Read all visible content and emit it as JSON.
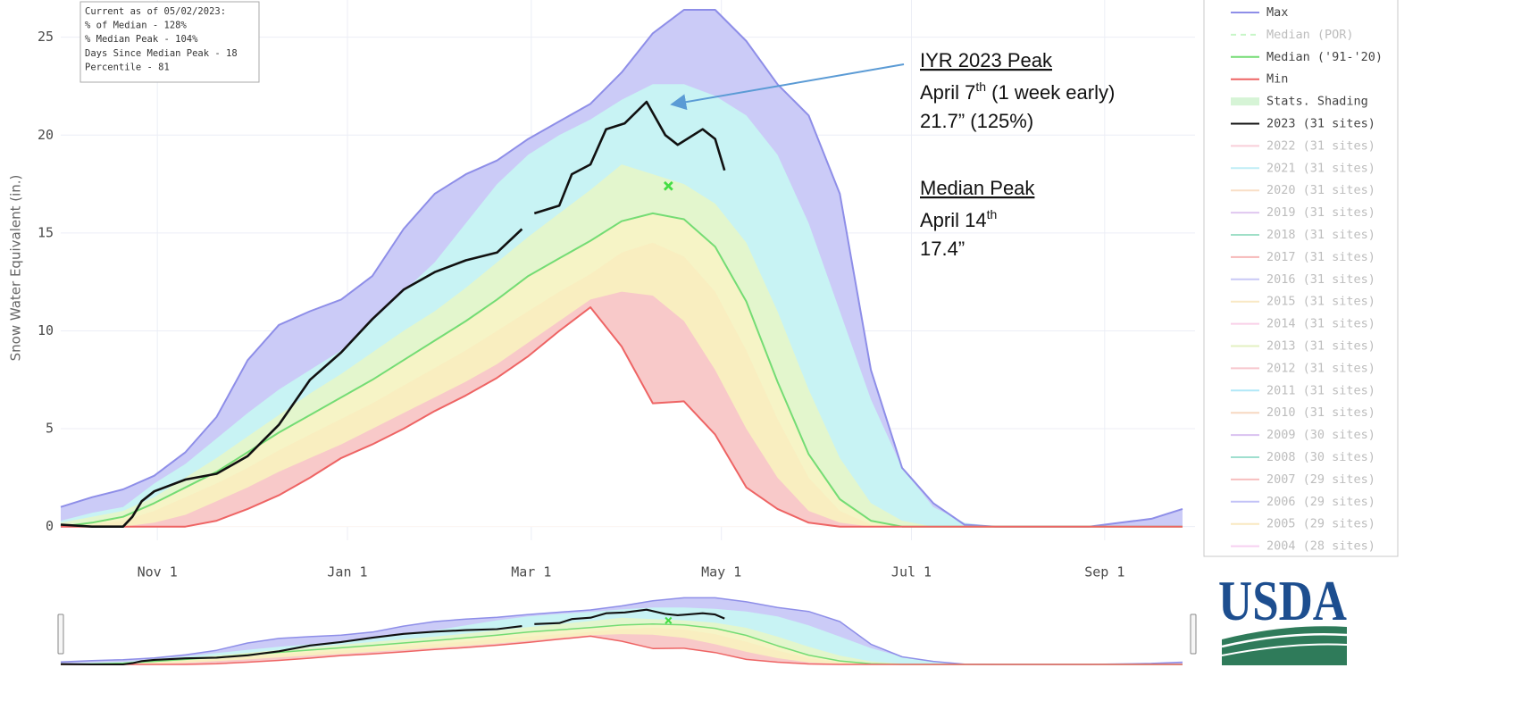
{
  "chart_data": {
    "type": "line",
    "y_label": "Snow Water Equivalent (in.)",
    "xlim": [
      0,
      364
    ],
    "ylim": [
      -0.7,
      26.9
    ],
    "xticks": [
      {
        "value": 31,
        "label": "Nov 1"
      },
      {
        "value": 92,
        "label": "Jan 1"
      },
      {
        "value": 151,
        "label": "Mar 1"
      },
      {
        "value": 212,
        "label": "May 1"
      },
      {
        "value": 273,
        "label": "Jul 1"
      },
      {
        "value": 335,
        "label": "Sep 1"
      }
    ],
    "yticks": [
      0,
      5,
      10,
      15,
      20,
      25
    ],
    "grid": true,
    "x": [
      0,
      10,
      20,
      30,
      40,
      50,
      60,
      70,
      80,
      90,
      100,
      110,
      120,
      130,
      140,
      150,
      160,
      170,
      180,
      190,
      200,
      210,
      220,
      230,
      240,
      250,
      260,
      270,
      280,
      290,
      300,
      310,
      320,
      330,
      340,
      350,
      360
    ],
    "series": [
      {
        "name": "Max",
        "color": "#8e8ee8",
        "values": [
          1.0,
          1.5,
          1.9,
          2.6,
          3.8,
          5.6,
          8.5,
          10.3,
          11.0,
          11.6,
          12.8,
          15.2,
          17.0,
          18.0,
          18.7,
          19.8,
          20.7,
          21.6,
          23.2,
          25.2,
          26.4,
          26.4,
          24.8,
          22.6,
          21.0,
          17.0,
          8.0,
          3.0,
          1.2,
          0.1,
          0,
          0,
          0,
          0,
          0.2,
          0.4,
          0.9
        ]
      },
      {
        "name": "Median (POR)",
        "color": "#90ee90",
        "dash": true,
        "visible": false
      },
      {
        "name": "Median ('91-'20)",
        "color": "#74dc74",
        "values": [
          0,
          0.2,
          0.5,
          1.2,
          2.0,
          2.8,
          3.8,
          4.8,
          5.7,
          6.6,
          7.5,
          8.5,
          9.5,
          10.5,
          11.6,
          12.8,
          13.7,
          14.6,
          15.6,
          16.0,
          15.7,
          14.3,
          11.5,
          7.4,
          3.7,
          1.4,
          0.3,
          0,
          0,
          0,
          0,
          0,
          0,
          0,
          0,
          0,
          0
        ]
      },
      {
        "name": "Min",
        "color": "#ee6464",
        "values": [
          0,
          0,
          0,
          0,
          0,
          0.3,
          0.9,
          1.6,
          2.5,
          3.5,
          4.2,
          5.0,
          5.9,
          6.7,
          7.6,
          8.7,
          10.0,
          11.2,
          9.2,
          6.3,
          6.4,
          4.7,
          2.0,
          0.9,
          0.2,
          0,
          0,
          0,
          0,
          0,
          0,
          0,
          0,
          0,
          0,
          0,
          0
        ]
      },
      {
        "name": "Stats. Shading",
        "color": "#d6f4d6",
        "fills": [
          "#cbcbf7",
          "#c8f3f4",
          "#e3f6cd",
          "#f6f4c6",
          "#f9eec0",
          "#f8c9c9"
        ],
        "edges": [
          [
            0.3,
            0.7,
            1.0,
            2.2,
            3.2,
            4.5,
            5.8,
            7.0,
            8.0,
            9.0,
            10.5,
            12.0,
            13.5,
            15.5,
            17.5,
            19.0,
            20.0,
            20.8,
            21.8,
            22.6,
            22.6,
            22.0,
            21.0,
            19.0,
            15.5,
            11.0,
            6.5,
            3.0,
            1.0,
            0.2,
            0,
            0,
            0,
            0,
            0,
            0,
            0
          ],
          [
            0.2,
            0.5,
            0.8,
            1.5,
            2.5,
            3.5,
            4.6,
            5.7,
            6.8,
            7.8,
            8.9,
            10.0,
            11.0,
            12.2,
            13.5,
            14.8,
            16.0,
            17.2,
            18.5,
            18.0,
            17.5,
            16.5,
            14.5,
            11.0,
            7.0,
            3.5,
            1.2,
            0.3,
            0,
            0,
            0,
            0,
            0,
            0,
            0,
            0,
            0
          ],
          [
            0,
            0.1,
            0.3,
            0.8,
            1.5,
            2.2,
            3.0,
            3.9,
            4.7,
            5.5,
            6.3,
            7.2,
            8.1,
            9.0,
            10.0,
            11.0,
            12.0,
            12.9,
            14.0,
            14.5,
            13.8,
            12.0,
            9.0,
            5.5,
            2.5,
            0.8,
            0.1,
            0,
            0,
            0,
            0,
            0,
            0,
            0,
            0,
            0,
            0
          ],
          [
            0,
            0,
            0,
            0.2,
            0.6,
            1.3,
            2.0,
            2.8,
            3.5,
            4.2,
            5.0,
            5.8,
            6.6,
            7.4,
            8.3,
            9.4,
            10.5,
            11.6,
            12.0,
            11.8,
            10.5,
            8.0,
            5.0,
            2.5,
            0.8,
            0.2,
            0,
            0,
            0,
            0,
            0,
            0,
            0,
            0,
            0,
            0,
            0
          ]
        ]
      },
      {
        "name": "2023 (31 sites)",
        "color": "#111111",
        "x": [
          0,
          10,
          20,
          23,
          26,
          30,
          40,
          50,
          60,
          70,
          80,
          90,
          100,
          110,
          120,
          130,
          140,
          148,
          150,
          152,
          160,
          164,
          170,
          175,
          181,
          188,
          194,
          198,
          206,
          210,
          213
        ],
        "values": [
          0.1,
          0,
          0,
          0.5,
          1.3,
          1.8,
          2.4,
          2.7,
          3.6,
          5.2,
          7.5,
          8.9,
          10.6,
          12.1,
          13.0,
          13.6,
          14.0,
          15.2,
          null,
          16.0,
          16.4,
          18.0,
          18.5,
          20.3,
          20.6,
          21.7,
          20.0,
          19.5,
          20.3,
          19.8,
          18.2
        ]
      },
      {
        "name": "2022 (31 sites)",
        "color": "#f4a0b4",
        "visible": false
      },
      {
        "name": "2021 (31 sites)",
        "color": "#7fdcee",
        "visible": false
      },
      {
        "name": "2020 (31 sites)",
        "color": "#f4bf8e",
        "visible": false
      },
      {
        "name": "2019 (31 sites)",
        "color": "#c292e2",
        "visible": false
      },
      {
        "name": "2018 (31 sites)",
        "color": "#3fbf90",
        "visible": false
      },
      {
        "name": "2017 (31 sites)",
        "color": "#ee7070",
        "visible": false
      },
      {
        "name": "2016 (31 sites)",
        "color": "#9494ee",
        "visible": false
      },
      {
        "name": "2015 (31 sites)",
        "color": "#f4d28a",
        "visible": false
      },
      {
        "name": "2014 (31 sites)",
        "color": "#f4a2d2",
        "visible": false
      },
      {
        "name": "2013 (31 sites)",
        "color": "#c8e284",
        "visible": false
      },
      {
        "name": "2012 (31 sites)",
        "color": "#f0909e",
        "visible": false
      },
      {
        "name": "2011 (31 sites)",
        "color": "#62d2f2",
        "visible": false
      },
      {
        "name": "2010 (31 sites)",
        "color": "#f0b284",
        "visible": false
      },
      {
        "name": "2009 (30 sites)",
        "color": "#b482e2",
        "visible": false
      },
      {
        "name": "2008 (30 sites)",
        "color": "#40c0a0",
        "visible": false
      },
      {
        "name": "2007 (29 sites)",
        "color": "#f08080",
        "visible": false
      },
      {
        "name": "2006 (29 sites)",
        "color": "#8686f0",
        "visible": false
      },
      {
        "name": "2005 (29 sites)",
        "color": "#f4d282",
        "visible": false
      },
      {
        "name": "2004 (28 sites)",
        "color": "#f0a2e4",
        "visible": false
      }
    ],
    "median_peak": {
      "x": 195,
      "value": 17.4,
      "color": "#44dd44"
    },
    "info_box": [
      "Current as of 05/02/2023:",
      "% of Median - 128%",
      "% Median Peak - 104%",
      "Days Since Median Peak - 18",
      "Percentile - 81"
    ],
    "annotations": [
      {
        "title": "IYR 2023 Peak",
        "lines": [
          {
            "text": "April 7",
            "sup": "th",
            "after": " (1 week early)"
          },
          {
            "text": "21.7” (125%)"
          }
        ]
      },
      {
        "title": "Median Peak",
        "lines": [
          {
            "text": "April 14",
            "sup": "th"
          },
          {
            "text": "17.4”"
          }
        ]
      }
    ],
    "logo": "USDA"
  }
}
